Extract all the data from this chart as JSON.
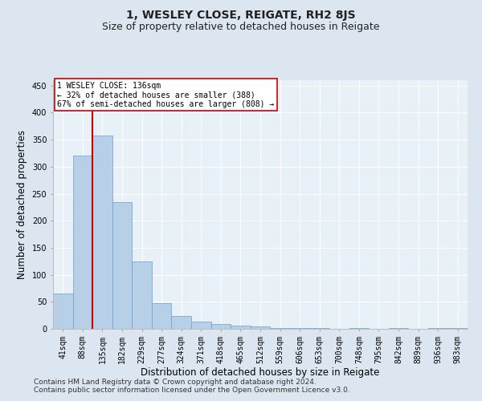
{
  "title1": "1, WESLEY CLOSE, REIGATE, RH2 8JS",
  "title2": "Size of property relative to detached houses in Reigate",
  "xlabel": "Distribution of detached houses by size in Reigate",
  "ylabel": "Number of detached properties",
  "categories": [
    "41sqm",
    "88sqm",
    "135sqm",
    "182sqm",
    "229sqm",
    "277sqm",
    "324sqm",
    "371sqm",
    "418sqm",
    "465sqm",
    "512sqm",
    "559sqm",
    "606sqm",
    "653sqm",
    "700sqm",
    "748sqm",
    "795sqm",
    "842sqm",
    "889sqm",
    "936sqm",
    "983sqm"
  ],
  "bar_heights": [
    65,
    320,
    358,
    234,
    125,
    48,
    24,
    13,
    9,
    6,
    4,
    2,
    1,
    1,
    0,
    1,
    0,
    1,
    0,
    1,
    1
  ],
  "bar_color": "#b8cfe8",
  "bar_edge_color": "#6aa0cc",
  "vline_color": "#cc0000",
  "ylim": [
    0,
    460
  ],
  "yticks": [
    0,
    50,
    100,
    150,
    200,
    250,
    300,
    350,
    400,
    450
  ],
  "annotation_text": "1 WESLEY CLOSE: 136sqm\n← 32% of detached houses are smaller (388)\n67% of semi-detached houses are larger (808) →",
  "annotation_box_color": "#ffffff",
  "annotation_box_edge": "#cc0000",
  "footnote1": "Contains HM Land Registry data © Crown copyright and database right 2024.",
  "footnote2": "Contains public sector information licensed under the Open Government Licence v3.0.",
  "bg_color": "#dce6f0",
  "plot_bg_color": "#e8f0f8",
  "title1_fontsize": 10,
  "title2_fontsize": 9,
  "xlabel_fontsize": 8.5,
  "ylabel_fontsize": 8.5,
  "tick_fontsize": 7,
  "footnote_fontsize": 6.5
}
